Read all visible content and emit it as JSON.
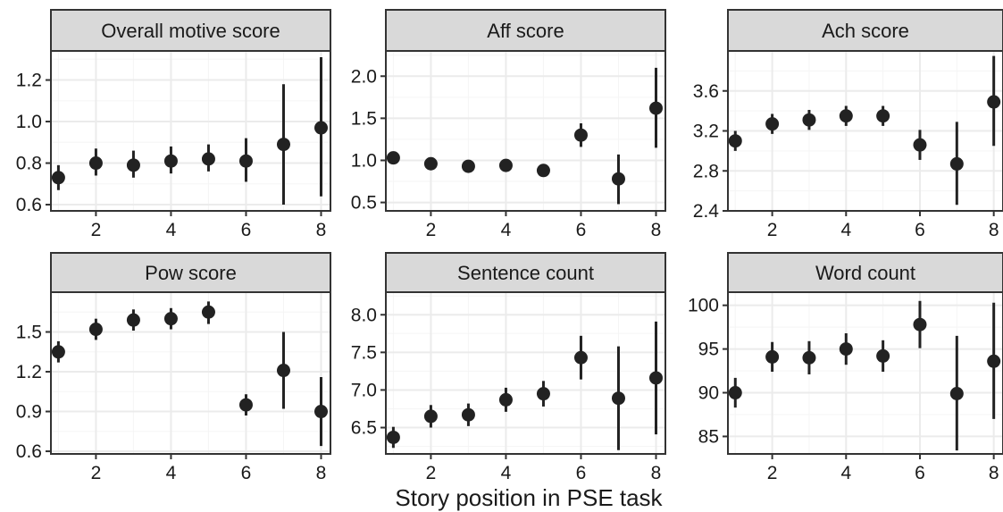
{
  "figure": {
    "xlabel": "Story position in PSE task"
  },
  "chart_data": [
    {
      "type": "scatter",
      "title": "Overall motive score",
      "xlim": [
        0.8,
        8.25
      ],
      "ylim": [
        0.57,
        1.34
      ],
      "x_ticks": [
        2,
        4,
        6,
        8
      ],
      "y_ticks": [
        0.6,
        0.8,
        1.0,
        1.2
      ],
      "y_tick_labels": [
        "0.6",
        "0.8",
        "1.0",
        "1.2"
      ],
      "x": [
        1,
        2,
        3,
        4,
        5,
        6,
        7,
        8
      ],
      "y": [
        0.73,
        0.8,
        0.79,
        0.81,
        0.82,
        0.81,
        0.89,
        0.97
      ],
      "lower": [
        0.67,
        0.74,
        0.73,
        0.75,
        0.76,
        0.71,
        0.6,
        0.64
      ],
      "upper": [
        0.79,
        0.87,
        0.86,
        0.88,
        0.89,
        0.92,
        1.18,
        1.31
      ],
      "grid": true
    },
    {
      "type": "scatter",
      "title": "Aff score",
      "xlim": [
        0.8,
        8.25
      ],
      "ylim": [
        0.4,
        2.3
      ],
      "x_ticks": [
        2,
        4,
        6,
        8
      ],
      "y_ticks": [
        0.5,
        1.0,
        1.5,
        2.0
      ],
      "y_tick_labels": [
        "0.5",
        "1.0",
        "1.5",
        "2.0"
      ],
      "x": [
        1,
        2,
        3,
        4,
        5,
        6,
        7,
        8
      ],
      "y": [
        1.03,
        0.96,
        0.93,
        0.94,
        0.88,
        1.3,
        0.78,
        1.62
      ],
      "lower": [
        0.99,
        0.92,
        0.89,
        0.9,
        0.84,
        1.16,
        0.48,
        1.15
      ],
      "upper": [
        1.07,
        1.0,
        0.97,
        0.98,
        0.92,
        1.44,
        1.07,
        2.1
      ],
      "grid": true
    },
    {
      "type": "scatter",
      "title": "Ach score",
      "xlim": [
        0.8,
        8.25
      ],
      "ylim": [
        2.4,
        4.0
      ],
      "x_ticks": [
        2,
        4,
        6,
        8
      ],
      "y_ticks": [
        2.4,
        2.8,
        3.2,
        3.6
      ],
      "y_tick_labels": [
        "2.4",
        "2.8",
        "3.2",
        "3.6"
      ],
      "x": [
        1,
        2,
        3,
        4,
        5,
        6,
        7,
        8
      ],
      "y": [
        3.1,
        3.27,
        3.31,
        3.35,
        3.35,
        3.06,
        2.87,
        3.49
      ],
      "lower": [
        3.0,
        3.17,
        3.21,
        3.25,
        3.25,
        2.91,
        2.46,
        3.05
      ],
      "upper": [
        3.2,
        3.37,
        3.41,
        3.45,
        3.45,
        3.21,
        3.29,
        3.95
      ],
      "grid": true
    },
    {
      "type": "scatter",
      "title": "Pow score",
      "xlim": [
        0.8,
        8.25
      ],
      "ylim": [
        0.58,
        1.8
      ],
      "x_ticks": [
        2,
        4,
        6,
        8
      ],
      "y_ticks": [
        0.6,
        0.9,
        1.2,
        1.5
      ],
      "y_tick_labels": [
        "0.6",
        "0.9",
        "1.2",
        "1.5"
      ],
      "x": [
        1,
        2,
        3,
        4,
        5,
        6,
        7,
        8
      ],
      "y": [
        1.35,
        1.52,
        1.59,
        1.6,
        1.65,
        0.95,
        1.21,
        0.9
      ],
      "lower": [
        1.27,
        1.44,
        1.51,
        1.52,
        1.56,
        0.87,
        0.92,
        0.64
      ],
      "upper": [
        1.43,
        1.6,
        1.67,
        1.68,
        1.73,
        1.03,
        1.5,
        1.16
      ],
      "grid": true
    },
    {
      "type": "scatter",
      "title": "Sentence count",
      "xlim": [
        0.8,
        8.25
      ],
      "ylim": [
        6.15,
        8.3
      ],
      "x_ticks": [
        2,
        4,
        6,
        8
      ],
      "y_ticks": [
        6.5,
        7.0,
        7.5,
        8.0
      ],
      "y_tick_labels": [
        "6.5",
        "7.0",
        "7.5",
        "8.0"
      ],
      "x": [
        1,
        2,
        3,
        4,
        5,
        6,
        7,
        8
      ],
      "y": [
        6.37,
        6.65,
        6.67,
        6.87,
        6.95,
        7.43,
        6.89,
        7.16
      ],
      "lower": [
        6.23,
        6.5,
        6.52,
        6.71,
        6.78,
        7.14,
        6.2,
        6.41
      ],
      "upper": [
        6.51,
        6.8,
        6.82,
        7.03,
        7.12,
        7.72,
        7.58,
        7.91
      ],
      "grid": true
    },
    {
      "type": "scatter",
      "title": "Word count",
      "xlim": [
        0.8,
        8.25
      ],
      "ylim": [
        83,
        101.5
      ],
      "x_ticks": [
        2,
        4,
        6,
        8
      ],
      "y_ticks": [
        85,
        90,
        95,
        100
      ],
      "y_tick_labels": [
        "85",
        "90",
        "95",
        "100"
      ],
      "x": [
        1,
        2,
        3,
        4,
        5,
        6,
        7,
        8
      ],
      "y": [
        90.0,
        94.1,
        94.0,
        95.0,
        94.2,
        97.8,
        89.9,
        93.6
      ],
      "lower": [
        88.3,
        92.4,
        92.1,
        93.2,
        92.4,
        95.1,
        83.4,
        87.0
      ],
      "upper": [
        91.7,
        95.8,
        95.9,
        96.8,
        96.0,
        100.5,
        96.5,
        100.3
      ],
      "grid": true
    }
  ],
  "colors": {
    "point": "#222222",
    "strip_fill": "#d9d9d9",
    "panel_border": "#333333",
    "grid_major": "#ebebeb",
    "grid_minor": "#f5f5f5",
    "text": "#1a1a1a"
  }
}
